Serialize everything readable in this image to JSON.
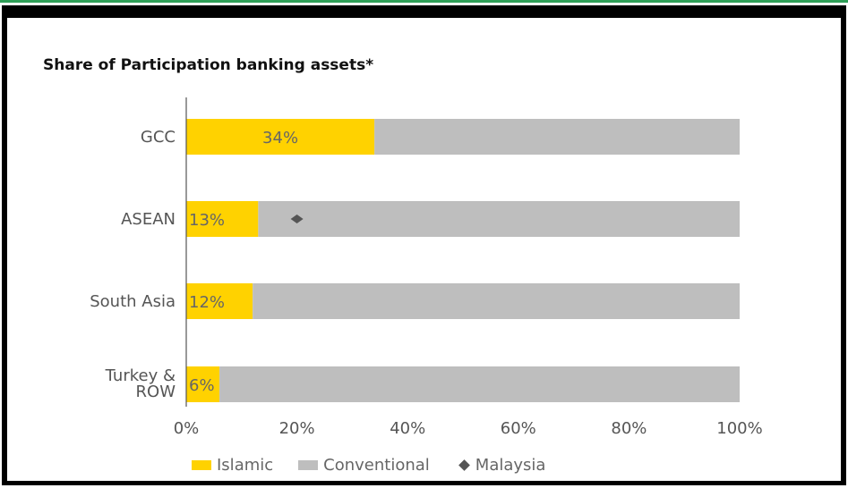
{
  "chart_data": {
    "type": "bar",
    "stacked": true,
    "orientation": "horizontal",
    "title": "Share of Participation banking assets*",
    "categories": [
      "GCC",
      "ASEAN",
      "South Asia",
      "Turkey & ROW"
    ],
    "series": [
      {
        "name": "Islamic",
        "values": [
          34,
          13,
          12,
          6
        ],
        "color": "#FFD200"
      },
      {
        "name": "Conventional",
        "values": [
          66,
          87,
          88,
          94
        ],
        "color": "#BEBEBE"
      }
    ],
    "markers": [
      {
        "name": "Malaysia",
        "category": "ASEAN",
        "value": 20,
        "shape": "diamond",
        "color": "#555555"
      }
    ],
    "data_labels": [
      "34%",
      "13%",
      "12%",
      "6%"
    ],
    "xlim": [
      0,
      100
    ],
    "xticks": [
      0,
      20,
      40,
      60,
      80,
      100
    ],
    "xtick_labels": [
      "0%",
      "20%",
      "40%",
      "60%",
      "80%",
      "100%"
    ],
    "legend": [
      "Islamic",
      "Conventional",
      "Malaysia"
    ],
    "legend_position": "bottom",
    "grid": false
  }
}
